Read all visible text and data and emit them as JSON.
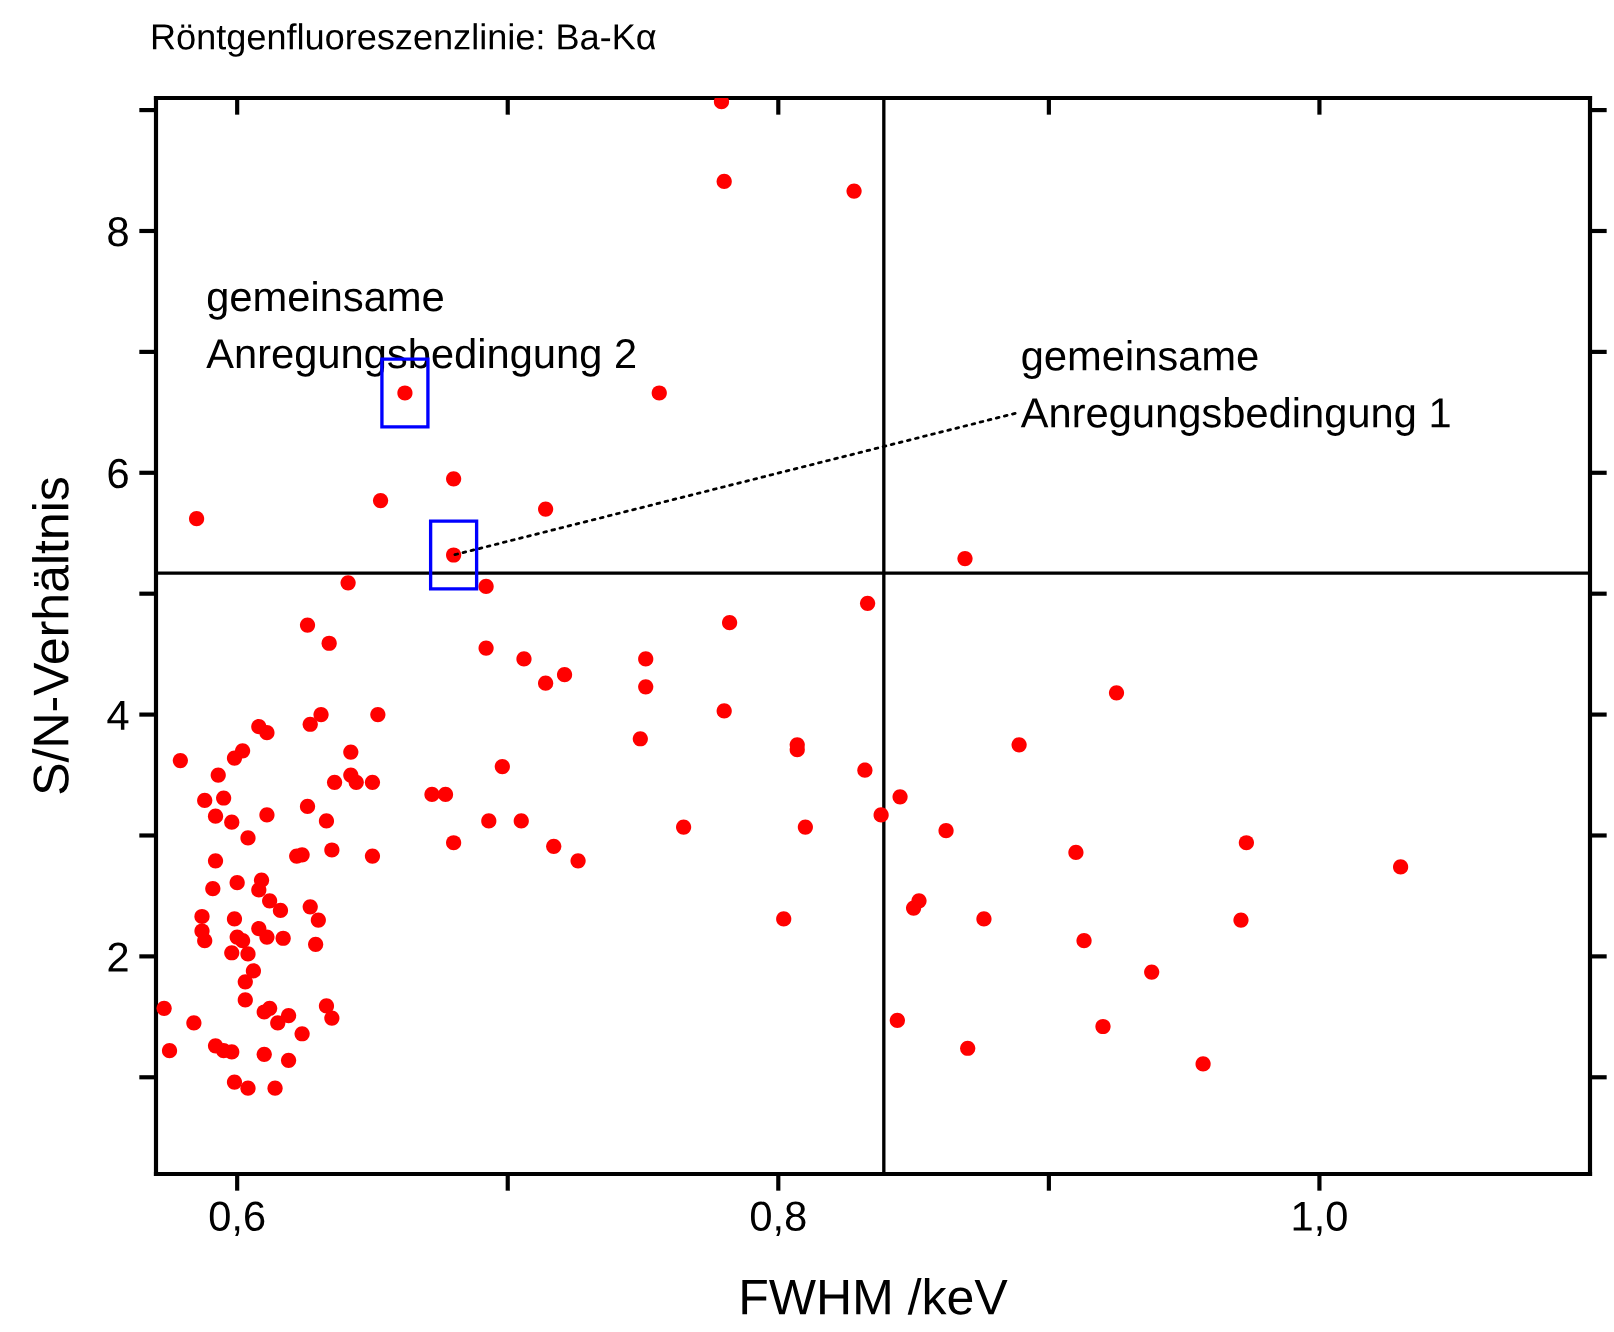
{
  "chart_data": {
    "type": "scatter",
    "title": "Röntgenfluoreszenzlinie: Ba-Kα",
    "xlabel": "FWHM /keV",
    "ylabel": "S/N-Verhältnis",
    "xlim": [
      0.57,
      1.1
    ],
    "ylim": [
      0.2,
      9.1
    ],
    "xticks": [
      {
        "value": 0.6,
        "label": "0,6"
      },
      {
        "value": 0.7,
        "label": null
      },
      {
        "value": 0.8,
        "label": "0,8"
      },
      {
        "value": 0.9,
        "label": null
      },
      {
        "value": 1.0,
        "label": "1,0"
      }
    ],
    "yticks": [
      {
        "value": 1,
        "label": null
      },
      2,
      {
        "value": 3,
        "label": null
      },
      4,
      {
        "value": 5,
        "label": null
      },
      6,
      {
        "value": 7,
        "label": null
      },
      8,
      {
        "value": 9,
        "label": null
      }
    ],
    "grid": false,
    "marker": "circle",
    "ref_lines": [
      {
        "axis": "y",
        "value": 5.17,
        "color": "#000000"
      },
      {
        "axis": "x",
        "value": 0.839,
        "color": "#000000"
      }
    ],
    "annotations": [
      {
        "text": "gemeinsame\nAnregungsbedingung 2",
        "x": 0.662,
        "y": 6.66
      },
      {
        "text": "gemeinsame\nAnregungsbedingung 1",
        "x": 0.68,
        "y": 5.32
      }
    ],
    "series": [
      {
        "color": "#ff0000",
        "x": [
          0.585,
          0.653,
          0.68,
          0.714,
          0.662,
          0.68,
          0.641,
          0.692,
          0.779,
          0.78,
          0.828,
          0.756,
          0.869,
          0.833,
          0.573,
          0.575,
          0.584,
          0.579,
          0.588,
          0.595,
          0.593,
          0.592,
          0.598,
          0.599,
          0.602,
          0.608,
          0.611,
          0.604,
          0.611,
          0.626,
          0.634,
          0.627,
          0.631,
          0.652,
          0.642,
          0.642,
          0.644,
          0.636,
          0.65,
          0.626,
          0.633,
          0.622,
          0.624,
          0.635,
          0.65,
          0.672,
          0.677,
          0.698,
          0.692,
          0.706,
          0.714,
          0.721,
          0.693,
          0.705,
          0.68,
          0.717,
          0.726,
          0.592,
          0.591,
          0.6,
          0.609,
          0.608,
          0.612,
          0.616,
          0.587,
          0.587,
          0.588,
          0.599,
          0.6,
          0.602,
          0.608,
          0.611,
          0.617,
          0.598,
          0.604,
          0.627,
          0.63,
          0.629,
          0.606,
          0.603,
          0.603,
          0.61,
          0.612,
          0.615,
          0.619,
          0.633,
          0.635,
          0.624,
          0.592,
          0.595,
          0.598,
          0.61,
          0.619,
          0.599,
          0.604,
          0.614,
          0.782,
          0.751,
          0.751,
          0.78,
          0.749,
          0.807,
          0.807,
          0.832,
          0.925,
          0.889,
          0.845,
          0.838,
          0.765,
          0.81,
          0.862,
          0.91,
          0.973,
          1.03,
          0.852,
          0.85,
          0.802,
          0.876,
          0.971,
          0.913,
          0.938,
          0.844,
          0.92,
          0.87,
          0.957
        ],
        "values": [
          5.62,
          5.77,
          5.95,
          5.7,
          6.66,
          5.32,
          5.09,
          5.06,
          9.07,
          8.41,
          8.33,
          6.66,
          5.29,
          4.92,
          1.57,
          1.22,
          1.45,
          3.62,
          3.29,
          3.31,
          3.5,
          3.16,
          3.11,
          3.64,
          3.7,
          3.9,
          3.85,
          2.98,
          3.17,
          4.74,
          4.59,
          3.92,
          4.0,
          4.0,
          3.69,
          3.5,
          3.44,
          3.44,
          3.44,
          3.24,
          3.12,
          2.83,
          2.84,
          2.88,
          2.83,
          3.34,
          3.34,
          3.57,
          4.55,
          4.46,
          4.26,
          4.33,
          3.12,
          3.12,
          2.94,
          2.91,
          2.79,
          2.79,
          2.56,
          2.61,
          2.63,
          2.55,
          2.46,
          2.38,
          2.33,
          2.21,
          2.13,
          2.31,
          2.16,
          2.13,
          2.23,
          2.16,
          2.15,
          2.03,
          2.02,
          2.41,
          2.3,
          2.1,
          1.88,
          1.79,
          1.64,
          1.54,
          1.57,
          1.45,
          1.51,
          1.59,
          1.49,
          1.36,
          1.26,
          1.22,
          1.21,
          1.19,
          1.14,
          0.96,
          0.91,
          0.91,
          4.76,
          4.46,
          4.23,
          4.03,
          3.8,
          3.75,
          3.71,
          3.54,
          4.18,
          3.75,
          3.32,
          3.17,
          3.07,
          3.07,
          3.04,
          2.86,
          2.94,
          2.74,
          2.46,
          2.4,
          2.31,
          2.31,
          2.3,
          2.13,
          1.87,
          1.47,
          1.42,
          1.24,
          1.11
        ]
      }
    ]
  }
}
